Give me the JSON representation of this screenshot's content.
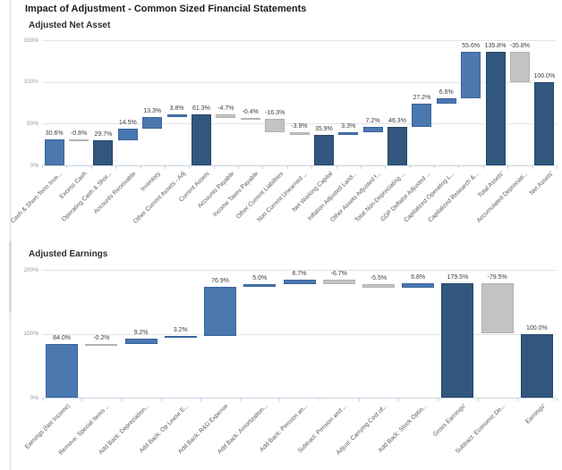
{
  "page_title": "Impact of Adjustment - Common Sized Financial Statements",
  "colors": {
    "positive": "#4a78af",
    "positive_border": "#3a659c",
    "subtotal": "#31577f",
    "subtotal_border": "#27466a",
    "negative": "#c3c3c3",
    "negative_border": "#b2b2b2",
    "axis": "#c8d4e2",
    "grid": "#e4e4e4"
  },
  "chart_data": [
    {
      "type": "bar",
      "subtype": "waterfall",
      "title": "Adjusted Net Asset",
      "ylim": [
        0,
        150
      ],
      "y_ticks": [
        "0%",
        "50%",
        "100%",
        "150%"
      ],
      "legend": "none",
      "grid": "horizontal",
      "categories": [
        "Cash & Short-Term Inve...",
        "Excess Cash",
        "Operating Cash & Shor...",
        "Accounts Receivable",
        "Inventory",
        "Other Current Assets - Adj",
        "Current Assets",
        "Accounts Payable",
        "Income Taxes Payable",
        "Other Current Liabilities",
        "Non Current Unearned ...",
        "Net Working Capital",
        "Inflation Adjusted Land...",
        "Other Assets Adjusted f...",
        "Total Non-Depreciating ...",
        "GDP Deflator Adjusted ...",
        "Capitalized Operating L...",
        "Capitalized Research &...",
        "Total Assets'",
        "Accumulated Depreciati...",
        "Net Assets'"
      ],
      "bars": [
        {
          "label": "30.6%",
          "value": 30.6,
          "start": 0,
          "end": 30.6,
          "role": "positive"
        },
        {
          "label": "-0.8%",
          "value": -0.8,
          "start": 30.6,
          "end": 29.8,
          "role": "negative"
        },
        {
          "label": "29.7%",
          "value": 29.7,
          "start": 0,
          "end": 29.7,
          "role": "subtotal"
        },
        {
          "label": "14.5%",
          "value": 14.5,
          "start": 29.7,
          "end": 44.2,
          "role": "positive"
        },
        {
          "label": "13.3%",
          "value": 13.3,
          "start": 44.2,
          "end": 57.5,
          "role": "positive"
        },
        {
          "label": "3.8%",
          "value": 3.8,
          "start": 57.5,
          "end": 61.3,
          "role": "positive"
        },
        {
          "label": "61.3%",
          "value": 61.3,
          "start": 0,
          "end": 61.3,
          "role": "subtotal"
        },
        {
          "label": "-4.7%",
          "value": -4.7,
          "start": 61.3,
          "end": 56.6,
          "role": "negative"
        },
        {
          "label": "-0.4%",
          "value": -0.4,
          "start": 56.6,
          "end": 56.2,
          "role": "negative"
        },
        {
          "label": "-16.3%",
          "value": -16.3,
          "start": 56.2,
          "end": 39.9,
          "role": "negative"
        },
        {
          "label": "-3.9%",
          "value": -3.9,
          "start": 39.9,
          "end": 36.0,
          "role": "negative"
        },
        {
          "label": "35.9%",
          "value": 35.9,
          "start": 0,
          "end": 35.9,
          "role": "subtotal"
        },
        {
          "label": "3.3%",
          "value": 3.3,
          "start": 35.9,
          "end": 39.2,
          "role": "positive"
        },
        {
          "label": "7.2%",
          "value": 7.2,
          "start": 39.2,
          "end": 46.4,
          "role": "positive"
        },
        {
          "label": "46.3%",
          "value": 46.3,
          "start": 0,
          "end": 46.3,
          "role": "subtotal"
        },
        {
          "label": "27.2%",
          "value": 27.2,
          "start": 46.3,
          "end": 73.5,
          "role": "positive"
        },
        {
          "label": "6.6%",
          "value": 6.6,
          "start": 73.5,
          "end": 80.1,
          "role": "positive"
        },
        {
          "label": "55.6%",
          "value": 55.6,
          "start": 80.1,
          "end": 135.7,
          "role": "positive"
        },
        {
          "label": "135.8%",
          "value": 135.8,
          "start": 0,
          "end": 135.8,
          "role": "subtotal"
        },
        {
          "label": "-35.8%",
          "value": -35.8,
          "start": 135.8,
          "end": 100.0,
          "role": "negative"
        },
        {
          "label": "100.0%",
          "value": 100.0,
          "start": 0,
          "end": 100.0,
          "role": "subtotal"
        }
      ]
    },
    {
      "type": "bar",
      "subtype": "waterfall",
      "title": "Adjusted Earnings",
      "ylim": [
        0,
        200
      ],
      "y_ticks": [
        "0%",
        "100%",
        "200%"
      ],
      "legend": "none",
      "grid": "horizontal",
      "categories": [
        "Earnings (Net Income)",
        "Remove: Special Items ...",
        "Add Back: Depreciation...",
        "Add Back: Op Lease E...",
        "Add Back: R&D Expense",
        "Add Back: Amortization...",
        "Add Back: Pension an...",
        "Subtract: Pension and ...",
        "Adjust: Carrying Cost of...",
        "Add Back: Stock Optio...",
        "Gross Earnings'",
        "Subtract: Economic De...",
        "Earnings'"
      ],
      "bars": [
        {
          "label": "84.0%",
          "value": 84.0,
          "start": 0,
          "end": 84.0,
          "role": "positive"
        },
        {
          "label": "-0.2%",
          "value": -0.2,
          "start": 84.0,
          "end": 83.8,
          "role": "negative"
        },
        {
          "label": "9.2%",
          "value": 9.2,
          "start": 83.8,
          "end": 93.0,
          "role": "positive"
        },
        {
          "label": "3.2%",
          "value": 3.2,
          "start": 93.0,
          "end": 96.2,
          "role": "positive"
        },
        {
          "label": "76.9%",
          "value": 76.9,
          "start": 96.2,
          "end": 173.1,
          "role": "positive"
        },
        {
          "label": "5.0%",
          "value": 5.0,
          "start": 173.1,
          "end": 178.1,
          "role": "positive"
        },
        {
          "label": "6.7%",
          "value": 6.7,
          "start": 178.1,
          "end": 184.8,
          "role": "positive"
        },
        {
          "label": "-6.7%",
          "value": -6.7,
          "start": 184.8,
          "end": 178.1,
          "role": "negative"
        },
        {
          "label": "-5.5%",
          "value": -5.5,
          "start": 178.1,
          "end": 172.6,
          "role": "negative"
        },
        {
          "label": "6.8%",
          "value": 6.8,
          "start": 172.6,
          "end": 179.4,
          "role": "positive"
        },
        {
          "label": "179.5%",
          "value": 179.5,
          "start": 0,
          "end": 179.5,
          "role": "subtotal"
        },
        {
          "label": "-79.5%",
          "value": -79.5,
          "start": 179.5,
          "end": 100.0,
          "role": "negative"
        },
        {
          "label": "100.0%",
          "value": 100.0,
          "start": 0,
          "end": 100.0,
          "role": "subtotal"
        }
      ]
    }
  ]
}
